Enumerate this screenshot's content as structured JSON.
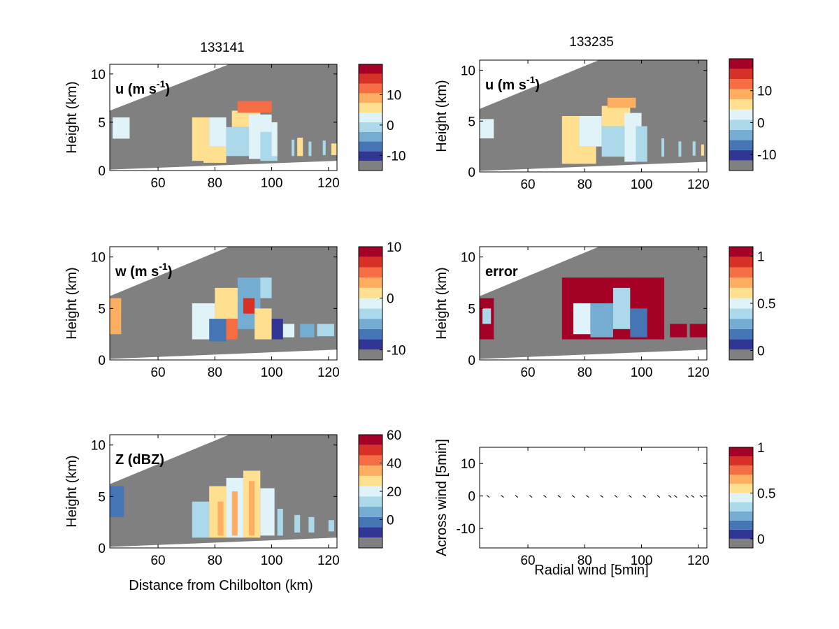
{
  "figure": {
    "column_titles": [
      "133141",
      "133235"
    ],
    "xlabel_left": "Distance from Chilbolton (km)",
    "xlabel_right": "Radial wind [5min]",
    "colors": {
      "background_gray": "#808080",
      "axis": "#000000",
      "colormap": [
        "#313695",
        "#4575b4",
        "#74add1",
        "#abd9e9",
        "#e0f3f8",
        "#fee090",
        "#fdae61",
        "#f46d43",
        "#d73027",
        "#a50026"
      ]
    }
  },
  "chart_data": [
    {
      "id": "u_133141",
      "type": "heatmap",
      "label": "u (m s-1)",
      "label_main": "u (m s",
      "label_sup": "-1",
      "label_close": ")",
      "ylabel": "Height (km)",
      "xlim": [
        43,
        123
      ],
      "ylim": [
        0,
        11
      ],
      "xticks": [
        60,
        80,
        100,
        120
      ],
      "yticks": [
        0,
        5,
        10
      ],
      "colorbar": {
        "ticks": [
          -10,
          0,
          10
        ],
        "range": [
          -15,
          20
        ]
      },
      "cells": [
        {
          "x": [
            44,
            50
          ],
          "y": [
            3.3,
            5.5
          ],
          "v": 2
        },
        {
          "x": [
            72,
            78
          ],
          "y": [
            1,
            5.5
          ],
          "v": 4
        },
        {
          "x": [
            76,
            84
          ],
          "y": [
            0.8,
            2.5
          ],
          "v": 3
        },
        {
          "x": [
            78,
            84
          ],
          "y": [
            2.5,
            5.5
          ],
          "v": 0
        },
        {
          "x": [
            84,
            92
          ],
          "y": [
            1.5,
            4.5
          ],
          "v": -2
        },
        {
          "x": [
            86,
            96
          ],
          "y": [
            4.5,
            6.2
          ],
          "v": 3
        },
        {
          "x": [
            88,
            100
          ],
          "y": [
            6,
            7.2
          ],
          "v": 12
        },
        {
          "x": [
            92,
            100
          ],
          "y": [
            1.2,
            5.8
          ],
          "v": 1
        },
        {
          "x": [
            96,
            102
          ],
          "y": [
            1,
            4
          ],
          "v": -3
        },
        {
          "x": [
            100,
            102
          ],
          "y": [
            1.5,
            5
          ],
          "v": 0
        },
        {
          "x": [
            107,
            108
          ],
          "y": [
            1.5,
            3.2
          ],
          "v": -2
        },
        {
          "x": [
            109,
            111
          ],
          "y": [
            1.5,
            3.4
          ],
          "v": 3
        },
        {
          "x": [
            113,
            114
          ],
          "y": [
            1.5,
            3
          ],
          "v": -3
        },
        {
          "x": [
            118,
            119
          ],
          "y": [
            1.6,
            3.1
          ],
          "v": -2
        },
        {
          "x": [
            121,
            123
          ],
          "y": [
            1.6,
            2.8
          ],
          "v": 3
        }
      ]
    },
    {
      "id": "u_133235",
      "type": "heatmap",
      "label": "u (m s-1)",
      "label_main": "u (m s",
      "label_sup": "-1",
      "label_close": ")",
      "ylabel": "Height (km)",
      "xlim": [
        43,
        123
      ],
      "ylim": [
        0,
        11
      ],
      "xticks": [
        60,
        80,
        100,
        120
      ],
      "yticks": [
        0,
        5,
        10
      ],
      "colorbar": {
        "ticks": [
          -10,
          0,
          10
        ],
        "range": [
          -15,
          20
        ]
      },
      "cells": [
        {
          "x": [
            43,
            48
          ],
          "y": [
            3.3,
            5.2
          ],
          "v": 1
        },
        {
          "x": [
            72,
            78
          ],
          "y": [
            0.8,
            5.5
          ],
          "v": 3
        },
        {
          "x": [
            76,
            84
          ],
          "y": [
            0.8,
            2.5
          ],
          "v": 4
        },
        {
          "x": [
            78,
            86
          ],
          "y": [
            2.5,
            5.5
          ],
          "v": -1
        },
        {
          "x": [
            86,
            94
          ],
          "y": [
            1.5,
            4.5
          ],
          "v": -2
        },
        {
          "x": [
            86,
            96
          ],
          "y": [
            4.5,
            6.5
          ],
          "v": 3
        },
        {
          "x": [
            88,
            98
          ],
          "y": [
            6.3,
            7.3
          ],
          "v": 8
        },
        {
          "x": [
            94,
            100
          ],
          "y": [
            1,
            5.8
          ],
          "v": 1
        },
        {
          "x": [
            98,
            102
          ],
          "y": [
            1,
            4.5
          ],
          "v": -3
        },
        {
          "x": [
            107,
            108
          ],
          "y": [
            1.5,
            3.3
          ],
          "v": -2
        },
        {
          "x": [
            113,
            114
          ],
          "y": [
            1.5,
            3
          ],
          "v": -3
        },
        {
          "x": [
            118,
            119
          ],
          "y": [
            1.6,
            3
          ],
          "v": -2
        },
        {
          "x": [
            121,
            122
          ],
          "y": [
            1.6,
            2.7
          ],
          "v": 3
        }
      ]
    },
    {
      "id": "w_133141",
      "type": "heatmap",
      "label": "w (m s-1)",
      "label_main": "w (m s",
      "label_sup": "-1",
      "label_close": ")",
      "ylabel": "Height (km)",
      "xlim": [
        43,
        123
      ],
      "ylim": [
        0,
        11
      ],
      "xticks": [
        60,
        80,
        100,
        120
      ],
      "yticks": [
        0,
        5,
        10
      ],
      "colorbar": {
        "ticks": [
          -10,
          0,
          10
        ],
        "range": [
          -12,
          10
        ]
      },
      "cells": [
        {
          "x": [
            43,
            47
          ],
          "y": [
            2.5,
            6
          ],
          "v": 2
        },
        {
          "x": [
            72,
            80
          ],
          "y": [
            2,
            5.5
          ],
          "v": -3
        },
        {
          "x": [
            78,
            84
          ],
          "y": [
            1.8,
            4
          ],
          "v": -9
        },
        {
          "x": [
            80,
            90
          ],
          "y": [
            4,
            7
          ],
          "v": 0
        },
        {
          "x": [
            84,
            88
          ],
          "y": [
            2,
            4
          ],
          "v": 5
        },
        {
          "x": [
            88,
            96
          ],
          "y": [
            3,
            8
          ],
          "v": -6
        },
        {
          "x": [
            90,
            94
          ],
          "y": [
            4.5,
            6
          ],
          "v": 6
        },
        {
          "x": [
            94,
            100
          ],
          "y": [
            2,
            5
          ],
          "v": 1
        },
        {
          "x": [
            96,
            100
          ],
          "y": [
            6,
            8
          ],
          "v": -5
        },
        {
          "x": [
            100,
            104
          ],
          "y": [
            2,
            4
          ],
          "v": -10
        },
        {
          "x": [
            104,
            108
          ],
          "y": [
            2.2,
            3.5
          ],
          "v": -3
        },
        {
          "x": [
            110,
            115
          ],
          "y": [
            2.2,
            3.5
          ],
          "v": -6
        },
        {
          "x": [
            116,
            122
          ],
          "y": [
            2.3,
            3.5
          ],
          "v": -4
        }
      ]
    },
    {
      "id": "error_133235",
      "type": "heatmap",
      "label": "error",
      "ylabel": "Height (km)",
      "xlim": [
        43,
        123
      ],
      "ylim": [
        0,
        11
      ],
      "xticks": [
        60,
        80,
        100,
        120
      ],
      "yticks": [
        0,
        5,
        10
      ],
      "colorbar": {
        "ticks": [
          0,
          0.5,
          1
        ],
        "range": [
          -0.1,
          1.1
        ]
      },
      "cells": [
        {
          "x": [
            43,
            48
          ],
          "y": [
            2,
            6
          ],
          "v": 1
        },
        {
          "x": [
            44,
            47
          ],
          "y": [
            3.5,
            5
          ],
          "v": 0.3
        },
        {
          "x": [
            72,
            108
          ],
          "y": [
            2,
            8
          ],
          "v": 1
        },
        {
          "x": [
            76,
            82
          ],
          "y": [
            2.5,
            5.5
          ],
          "v": 0.4
        },
        {
          "x": [
            82,
            90
          ],
          "y": [
            2.2,
            5.5
          ],
          "v": 0.15
        },
        {
          "x": [
            90,
            96
          ],
          "y": [
            3,
            7
          ],
          "v": 0.35
        },
        {
          "x": [
            96,
            102
          ],
          "y": [
            2.2,
            5
          ],
          "v": 0.1
        },
        {
          "x": [
            110,
            116
          ],
          "y": [
            2.2,
            3.5
          ],
          "v": 1
        },
        {
          "x": [
            117,
            123
          ],
          "y": [
            2.2,
            3.5
          ],
          "v": 1
        }
      ]
    },
    {
      "id": "Z_133141",
      "type": "heatmap",
      "label": "Z (dBZ)",
      "ylabel": "Height (km)",
      "xlabel": "Distance from Chilbolton (km)",
      "xlim": [
        43,
        123
      ],
      "ylim": [
        0,
        11
      ],
      "xticks": [
        60,
        80,
        100,
        120
      ],
      "yticks": [
        0,
        5,
        10
      ],
      "colorbar": {
        "ticks": [
          0,
          20,
          40,
          60
        ],
        "range": [
          -20,
          60
        ]
      },
      "cells": [
        {
          "x": [
            43,
            48
          ],
          "y": [
            3,
            6
          ],
          "v": -5
        },
        {
          "x": [
            72,
            78
          ],
          "y": [
            1,
            4.5
          ],
          "v": 8
        },
        {
          "x": [
            78,
            84
          ],
          "y": [
            1,
            6
          ],
          "v": 20
        },
        {
          "x": [
            81,
            83
          ],
          "y": [
            1.2,
            4.5
          ],
          "v": 30
        },
        {
          "x": [
            84,
            90
          ],
          "y": [
            1,
            6.8
          ],
          "v": 18
        },
        {
          "x": [
            86,
            88
          ],
          "y": [
            1.2,
            5.5
          ],
          "v": 32
        },
        {
          "x": [
            90,
            96
          ],
          "y": [
            1,
            7.5
          ],
          "v": 22
        },
        {
          "x": [
            92,
            94
          ],
          "y": [
            1.2,
            6.5
          ],
          "v": 32
        },
        {
          "x": [
            96,
            101
          ],
          "y": [
            1.2,
            5.8
          ],
          "v": 15
        },
        {
          "x": [
            102,
            104
          ],
          "y": [
            1.2,
            3.8
          ],
          "v": 10
        },
        {
          "x": [
            108,
            110
          ],
          "y": [
            1.5,
            3.2
          ],
          "v": 8
        },
        {
          "x": [
            113,
            115
          ],
          "y": [
            1.5,
            3
          ],
          "v": 6
        },
        {
          "x": [
            120,
            122
          ],
          "y": [
            1.6,
            2.7
          ],
          "v": 5
        }
      ]
    },
    {
      "id": "radial_wind",
      "type": "scatter",
      "xlabel": "Radial wind [5min]",
      "ylabel": "Across wind [5min]",
      "xlim": [
        43,
        123
      ],
      "ylim": [
        -16,
        15
      ],
      "xticks": [
        60,
        80,
        100,
        120
      ],
      "yticks": [
        -10,
        0,
        10
      ],
      "colorbar": {
        "ticks": [
          0,
          0.5,
          1
        ],
        "range": [
          -0.1,
          1.0
        ]
      },
      "points": [
        {
          "x": 46,
          "y": 0
        },
        {
          "x": 51,
          "y": 0
        },
        {
          "x": 56,
          "y": 0
        },
        {
          "x": 61,
          "y": 0
        },
        {
          "x": 66,
          "y": 0
        },
        {
          "x": 71,
          "y": 0
        },
        {
          "x": 76,
          "y": 0
        },
        {
          "x": 81,
          "y": 0
        },
        {
          "x": 86,
          "y": 0
        },
        {
          "x": 91,
          "y": 0
        },
        {
          "x": 96,
          "y": 0
        },
        {
          "x": 101,
          "y": 0
        },
        {
          "x": 106,
          "y": 0
        },
        {
          "x": 110,
          "y": 0
        },
        {
          "x": 112,
          "y": 0
        },
        {
          "x": 116,
          "y": 0
        },
        {
          "x": 118,
          "y": 0
        },
        {
          "x": 121,
          "y": 0
        }
      ]
    }
  ]
}
